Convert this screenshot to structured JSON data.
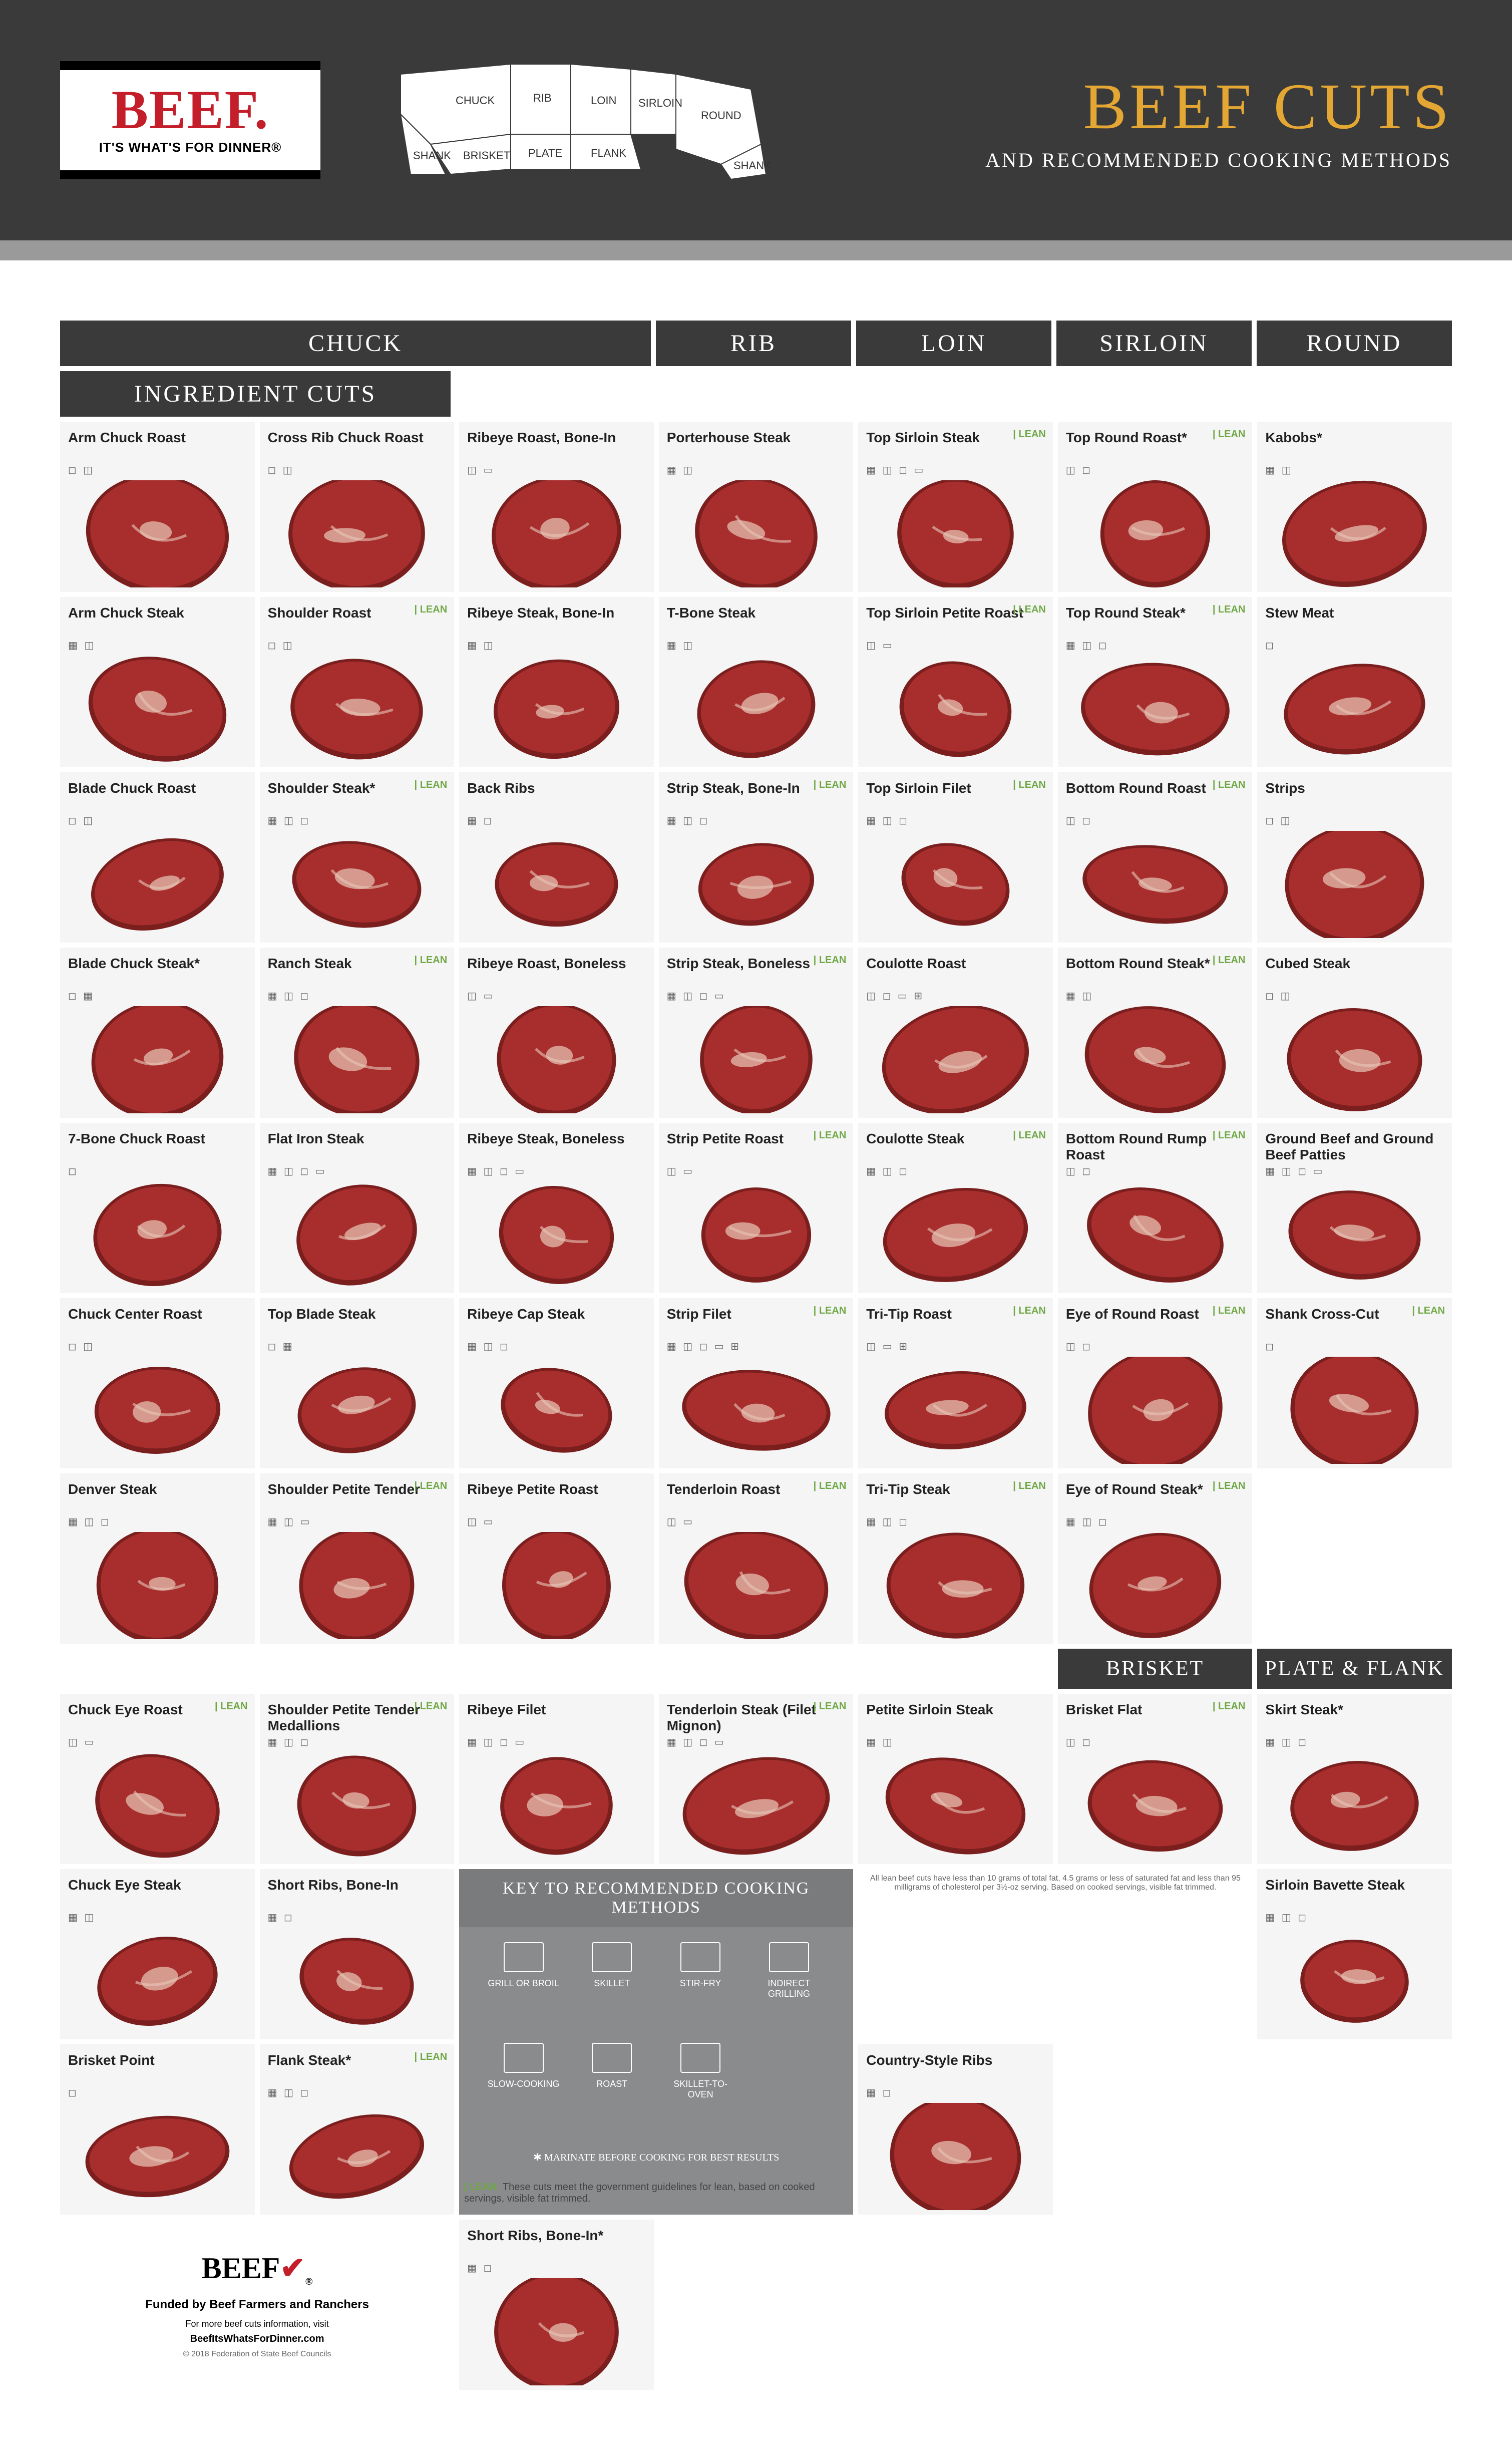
{
  "colors": {
    "header_bg": "#3a3a3a",
    "accent": "#9a9a9a",
    "brand_red": "#c41e2a",
    "title_gold": "#e5a733",
    "lean_green": "#6fa845",
    "card_bg": "#f5f5f5",
    "key_bg": "#8a8b8c",
    "meat_red": "#a82e2e",
    "meat_dark": "#7a1e1e",
    "meat_fat": "#e8c8b8"
  },
  "logo": {
    "word": "BEEF.",
    "tagline": "IT'S WHAT'S FOR DINNER®"
  },
  "title": {
    "main": "BEEF CUTS",
    "sub": "AND RECOMMENDED COOKING METHODS"
  },
  "cow_regions": [
    "CHUCK",
    "RIB",
    "LOIN",
    "SIRLOIN",
    "ROUND",
    "SHANK",
    "BRISKET",
    "PLATE",
    "FLANK",
    "SHANK"
  ],
  "sections": {
    "top": [
      "CHUCK",
      "RIB",
      "LOIN",
      "SIRLOIN",
      "ROUND",
      "INGREDIENT CUTS"
    ],
    "mid": [
      "BRISKET",
      "PLATE & FLANK"
    ]
  },
  "lean_label": "LEAN",
  "cuts": [
    {
      "col": "chuck",
      "row": 0,
      "name": "Arm Chuck Roast",
      "icons": "◻ ◫",
      "lean": false
    },
    {
      "col": "chuck2",
      "row": 0,
      "name": "Cross Rib Chuck Roast",
      "icons": "◻ ◫",
      "lean": false
    },
    {
      "col": "rib",
      "row": 0,
      "name": "Ribeye Roast, Bone-In",
      "icons": "◫ ▭",
      "lean": false
    },
    {
      "col": "loin",
      "row": 0,
      "name": "Porterhouse Steak",
      "icons": "▦ ◫",
      "lean": false
    },
    {
      "col": "sirloin",
      "row": 0,
      "name": "Top Sirloin Steak",
      "icons": "▦ ◫ ◻ ▭",
      "lean": true
    },
    {
      "col": "round",
      "row": 0,
      "name": "Top Round Roast*",
      "icons": "◫ ◻",
      "lean": true
    },
    {
      "col": "ingredient",
      "row": 0,
      "name": "Kabobs*",
      "icons": "▦ ◫",
      "lean": false
    },
    {
      "col": "chuck",
      "row": 1,
      "name": "Arm Chuck Steak",
      "icons": "▦ ◫",
      "lean": false
    },
    {
      "col": "chuck2",
      "row": 1,
      "name": "Shoulder Roast",
      "icons": "◻ ◫",
      "lean": true
    },
    {
      "col": "rib",
      "row": 1,
      "name": "Ribeye Steak, Bone-In",
      "icons": "▦ ◫",
      "lean": false
    },
    {
      "col": "loin",
      "row": 1,
      "name": "T-Bone Steak",
      "icons": "▦ ◫",
      "lean": false
    },
    {
      "col": "sirloin",
      "row": 1,
      "name": "Top Sirloin Petite Roast",
      "icons": "◫ ▭",
      "lean": true
    },
    {
      "col": "round",
      "row": 1,
      "name": "Top Round Steak*",
      "icons": "▦ ◫ ◻",
      "lean": true
    },
    {
      "col": "ingredient",
      "row": 1,
      "name": "Stew Meat",
      "icons": "◻",
      "lean": false
    },
    {
      "col": "chuck",
      "row": 2,
      "name": "Blade Chuck Roast",
      "icons": "◻ ◫",
      "lean": false
    },
    {
      "col": "chuck2",
      "row": 2,
      "name": "Shoulder Steak*",
      "icons": "▦ ◫ ◻",
      "lean": true
    },
    {
      "col": "rib",
      "row": 2,
      "name": "Back Ribs",
      "icons": "▦ ◻",
      "lean": false
    },
    {
      "col": "loin",
      "row": 2,
      "name": "Strip Steak, Bone-In",
      "icons": "▦ ◫ ◻",
      "lean": true
    },
    {
      "col": "sirloin",
      "row": 2,
      "name": "Top Sirloin Filet",
      "icons": "▦ ◫ ◻",
      "lean": true
    },
    {
      "col": "round",
      "row": 2,
      "name": "Bottom Round Roast",
      "icons": "◫ ◻",
      "lean": true
    },
    {
      "col": "ingredient",
      "row": 2,
      "name": "Strips",
      "icons": "◻ ◫",
      "lean": false
    },
    {
      "col": "chuck",
      "row": 3,
      "name": "Blade Chuck Steak*",
      "icons": "◻ ▦",
      "lean": false
    },
    {
      "col": "chuck2",
      "row": 3,
      "name": "Ranch Steak",
      "icons": "▦ ◫ ◻",
      "lean": true
    },
    {
      "col": "rib",
      "row": 3,
      "name": "Ribeye Roast, Boneless",
      "icons": "◫ ▭",
      "lean": false
    },
    {
      "col": "loin",
      "row": 3,
      "name": "Strip Steak, Boneless",
      "icons": "▦ ◫ ◻ ▭",
      "lean": true
    },
    {
      "col": "sirloin",
      "row": 3,
      "name": "Coulotte Roast",
      "icons": "◫ ◻ ▭ ⊞",
      "lean": false
    },
    {
      "col": "round",
      "row": 3,
      "name": "Bottom Round Steak*",
      "icons": "▦ ◫",
      "lean": true
    },
    {
      "col": "ingredient",
      "row": 3,
      "name": "Cubed Steak",
      "icons": "◻ ◫",
      "lean": false
    },
    {
      "col": "chuck",
      "row": 4,
      "name": "7-Bone Chuck Roast",
      "icons": "◻",
      "lean": false
    },
    {
      "col": "chuck2",
      "row": 4,
      "name": "Flat Iron Steak",
      "icons": "▦ ◫ ◻ ▭",
      "lean": false
    },
    {
      "col": "rib",
      "row": 4,
      "name": "Ribeye Steak, Boneless",
      "icons": "▦ ◫ ◻ ▭",
      "lean": false
    },
    {
      "col": "loin",
      "row": 4,
      "name": "Strip Petite Roast",
      "icons": "◫ ▭",
      "lean": true
    },
    {
      "col": "sirloin",
      "row": 4,
      "name": "Coulotte Steak",
      "icons": "▦ ◫ ◻",
      "lean": true
    },
    {
      "col": "round",
      "row": 4,
      "name": "Bottom Round Rump Roast",
      "icons": "◫ ◻",
      "lean": true
    },
    {
      "col": "ingredient",
      "row": 4,
      "name": "Ground Beef and Ground Beef Patties",
      "icons": "▦ ◫ ◻ ▭",
      "lean": false
    },
    {
      "col": "chuck",
      "row": 5,
      "name": "Chuck Center Roast",
      "icons": "◻ ◫",
      "lean": false
    },
    {
      "col": "chuck2",
      "row": 5,
      "name": "Top Blade Steak",
      "icons": "◻ ▦",
      "lean": false
    },
    {
      "col": "rib",
      "row": 5,
      "name": "Ribeye Cap Steak",
      "icons": "▦ ◫ ◻",
      "lean": false
    },
    {
      "col": "loin",
      "row": 5,
      "name": "Strip Filet",
      "icons": "▦ ◫ ◻ ▭ ⊞",
      "lean": true
    },
    {
      "col": "sirloin",
      "row": 5,
      "name": "Tri-Tip Roast",
      "icons": "◫ ▭ ⊞",
      "lean": true
    },
    {
      "col": "round",
      "row": 5,
      "name": "Eye of Round Roast",
      "icons": "◫ ◻",
      "lean": true
    },
    {
      "col": "ingredient",
      "row": 5,
      "name": "Shank Cross-Cut",
      "icons": "◻",
      "lean": true
    },
    {
      "col": "chuck",
      "row": 6,
      "name": "Denver Steak",
      "icons": "▦ ◫ ◻",
      "lean": false
    },
    {
      "col": "chuck2",
      "row": 6,
      "name": "Shoulder Petite Tender",
      "icons": "▦ ◫ ▭",
      "lean": true
    },
    {
      "col": "rib",
      "row": 6,
      "name": "Ribeye Petite Roast",
      "icons": "◫ ▭",
      "lean": false
    },
    {
      "col": "loin",
      "row": 6,
      "name": "Tenderloin Roast",
      "icons": "◫ ▭",
      "lean": true
    },
    {
      "col": "sirloin",
      "row": 6,
      "name": "Tri-Tip Steak",
      "icons": "▦ ◫ ◻",
      "lean": true
    },
    {
      "col": "round",
      "row": 6,
      "name": "Eye of Round Steak*",
      "icons": "▦ ◫ ◻",
      "lean": true
    },
    {
      "col": "chuck",
      "row": 7,
      "name": "Chuck Eye Roast",
      "icons": "◫ ▭",
      "lean": true
    },
    {
      "col": "chuck2",
      "row": 7,
      "name": "Shoulder Petite Tender Medallions",
      "icons": "▦ ◫ ◻",
      "lean": true
    },
    {
      "col": "rib",
      "row": 7,
      "name": "Ribeye Filet",
      "icons": "▦ ◫ ◻ ▭",
      "lean": false
    },
    {
      "col": "loin",
      "row": 7,
      "name": "Tenderloin Steak (Filet Mignon)",
      "icons": "▦ ◫ ◻ ▭",
      "lean": true
    },
    {
      "col": "sirloin",
      "row": 7,
      "name": "Petite Sirloin Steak",
      "icons": "▦ ◫",
      "lean": false
    },
    {
      "col": "brisket",
      "row": 7,
      "name": "Brisket Flat",
      "icons": "◫ ◻",
      "lean": true
    },
    {
      "col": "plate",
      "row": 7,
      "name": "Skirt Steak*",
      "icons": "▦ ◫ ◻",
      "lean": false
    },
    {
      "col": "chuck",
      "row": 8,
      "name": "Chuck Eye Steak",
      "icons": "▦ ◫",
      "lean": false
    },
    {
      "col": "chuck2",
      "row": 8,
      "name": "Short Ribs, Bone-In",
      "icons": "▦ ◻",
      "lean": false
    },
    {
      "col": "sirloin",
      "row": 8,
      "name": "Sirloin Bavette Steak",
      "icons": "▦ ◫ ◻",
      "lean": false
    },
    {
      "col": "brisket",
      "row": 8,
      "name": "Brisket Point",
      "icons": "◻",
      "lean": false
    },
    {
      "col": "plate",
      "row": 8,
      "name": "Flank Steak*",
      "icons": "▦ ◫ ◻",
      "lean": true
    },
    {
      "col": "chuck",
      "row": 9,
      "name": "Country-Style Ribs",
      "icons": "▦ ◻",
      "lean": false
    },
    {
      "col": "plate",
      "row": 9,
      "name": "Short Ribs, Bone-In*",
      "icons": "▦ ◻",
      "lean": false
    }
  ],
  "key": {
    "title": "KEY TO RECOMMENDED COOKING METHODS",
    "items": [
      "GRILL OR BROIL",
      "SKILLET",
      "STIR-FRY",
      "INDIRECT GRILLING",
      "SLOW-COOKING",
      "ROAST",
      "SKILLET-TO-OVEN"
    ],
    "footnote": "✱ MARINATE BEFORE COOKING FOR BEST RESULTS"
  },
  "lean_note": "These cuts meet the government guidelines for lean, based on cooked servings, visible fat trimmed.",
  "fine_print": "All lean beef cuts have less than 10 grams of total fat, 4.5 grams or less of saturated fat and less than 95 milligrams of cholesterol per 3½-oz serving. Based on cooked servings, visible fat trimmed.",
  "footer": {
    "logo": "BEEF",
    "funded": "Funded by Beef Farmers and Ranchers",
    "info": "For more beef cuts information, visit",
    "url": "BeefItsWhatsForDinner.com",
    "copyright": "© 2018 Federation of State Beef Councils"
  }
}
